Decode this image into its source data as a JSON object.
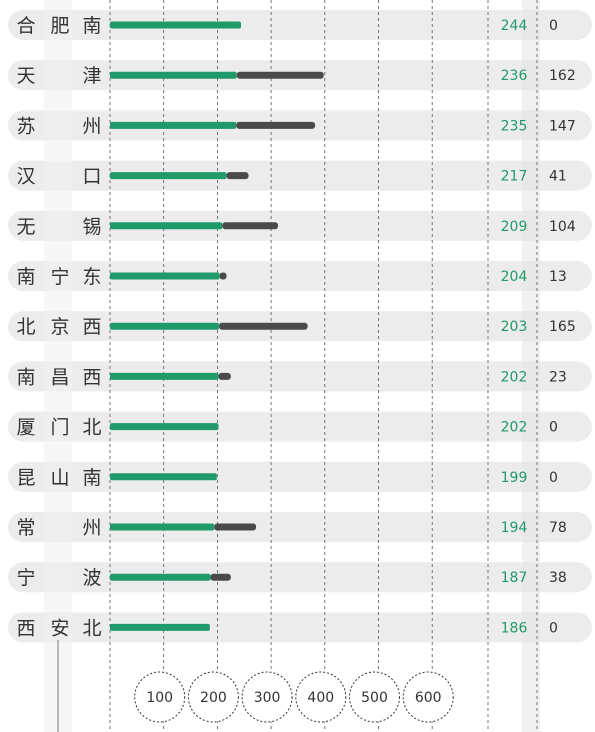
{
  "chart_data": {
    "type": "bar",
    "orientation": "horizontal",
    "stacked": true,
    "categories": [
      "合肥南",
      "天津",
      "苏州",
      "汉口",
      "无锡",
      "南宁东",
      "北京西",
      "南昌西",
      "厦门北",
      "昆山南",
      "常州",
      "宁波",
      "西安北"
    ],
    "category_labels": [
      [
        "合",
        "肥",
        "南"
      ],
      [
        "天",
        "",
        "津"
      ],
      [
        "苏",
        "",
        "州"
      ],
      [
        "汉",
        "",
        "口"
      ],
      [
        "无",
        "",
        "锡"
      ],
      [
        "南",
        "宁",
        "东"
      ],
      [
        "北",
        "京",
        "西"
      ],
      [
        "南",
        "昌",
        "西"
      ],
      [
        "厦",
        "门",
        "北"
      ],
      [
        "昆",
        "山",
        "南"
      ],
      [
        "常",
        "",
        "州"
      ],
      [
        "宁",
        "",
        "波"
      ],
      [
        "西",
        "安",
        "北"
      ]
    ],
    "series": [
      {
        "values": [
          244,
          236,
          235,
          217,
          209,
          204,
          203,
          202,
          202,
          199,
          194,
          187,
          186
        ]
      },
      {
        "values": [
          0,
          162,
          147,
          41,
          104,
          13,
          165,
          23,
          0,
          0,
          78,
          38,
          0
        ]
      }
    ],
    "x_ticks": [
      100,
      200,
      300,
      400,
      500,
      600
    ],
    "xlim": [
      0,
      700
    ],
    "grid": true,
    "colors": {
      "series1": "#1f9a6a",
      "series2": "#4a4a4a",
      "row_bg": "#ececec",
      "grid": "#555555"
    }
  }
}
